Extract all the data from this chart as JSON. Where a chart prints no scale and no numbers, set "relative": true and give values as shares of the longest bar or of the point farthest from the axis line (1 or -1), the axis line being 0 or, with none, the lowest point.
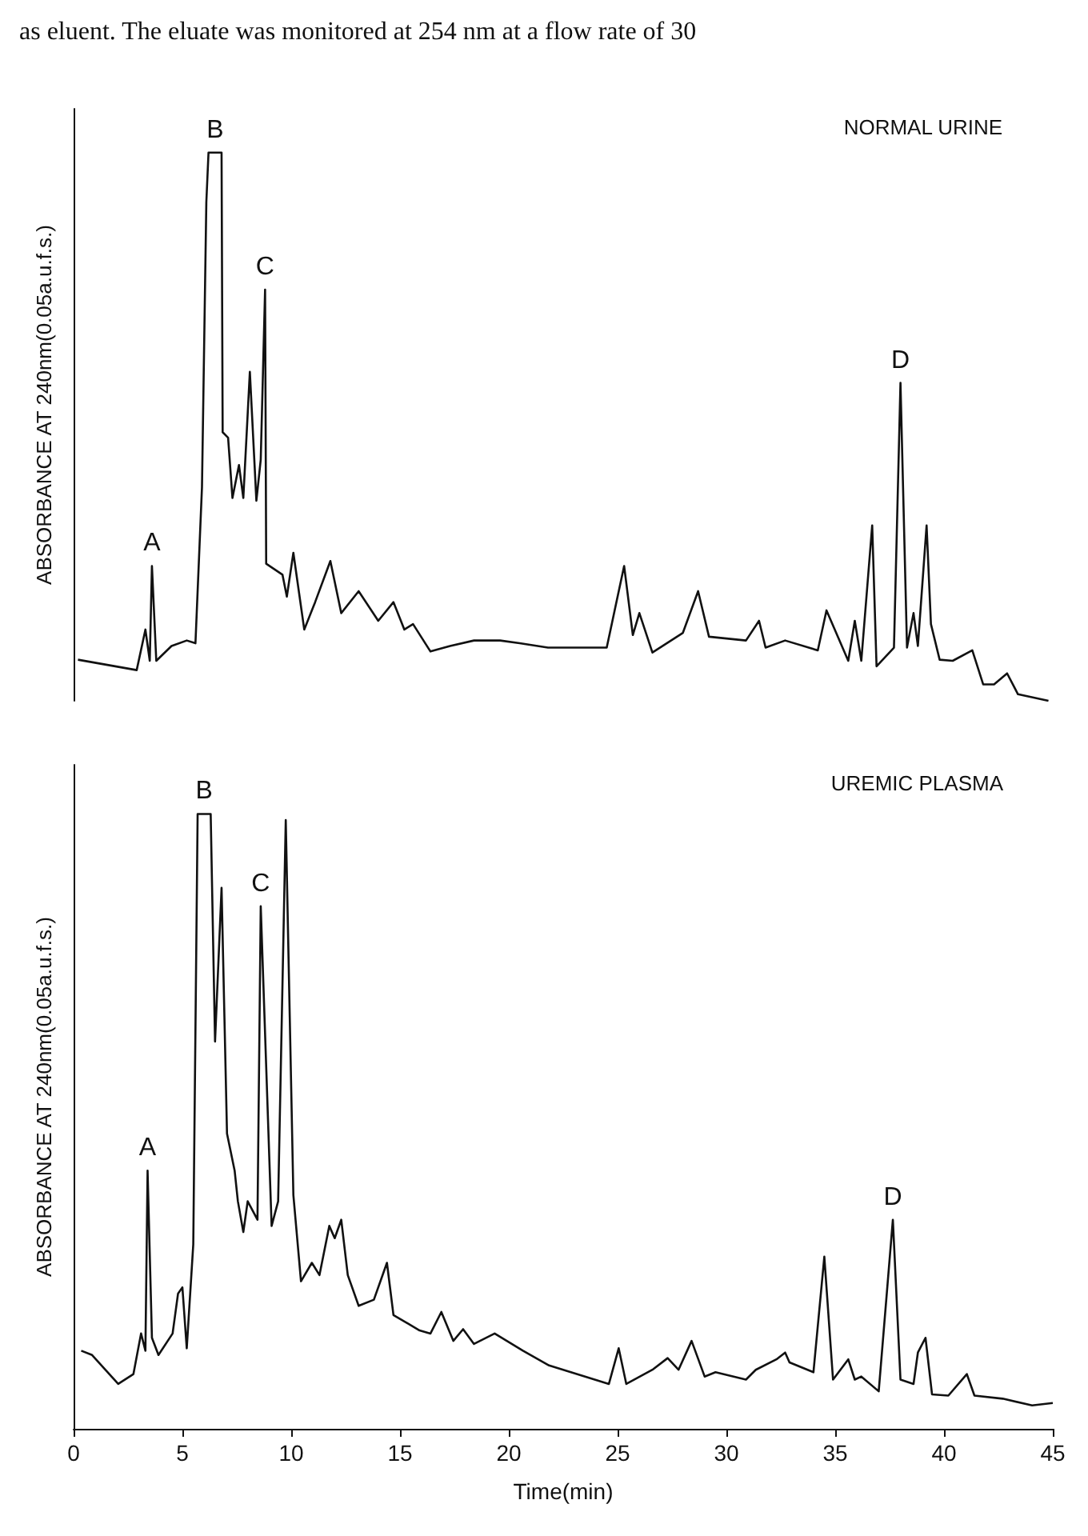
{
  "chart_data": [
    {
      "type": "line",
      "title": "NORMAL URINE",
      "ylabel": "ABSORBANCE AT 240nm(0.05a.u.f.s.)",
      "relative": true,
      "xlim": [
        0,
        45
      ],
      "tick_labels": false,
      "grid": false,
      "marker": "none",
      "annotations": [
        "as eluent. The eluate was monitored at 254 nm at a flow rate of 30",
        {
          "text": "A",
          "x": 3.6,
          "y": 0.246
        },
        {
          "text": "B",
          "x": 6.5,
          "y": 1.0
        },
        {
          "text": "C",
          "x": 8.8,
          "y": 0.75
        },
        {
          "text": "D",
          "x": 38.0,
          "y": 0.58
        }
      ],
      "series": [
        {
          "color": "#111111",
          "x": [
            0.2,
            2.9,
            3.3,
            3.5,
            3.6,
            3.8,
            4.5,
            5.2,
            5.6,
            5.9,
            6.1,
            6.2,
            6.8,
            6.85,
            7.1,
            7.3,
            7.6,
            7.8,
            8.1,
            8.4,
            8.6,
            8.8,
            8.85,
            9.6,
            9.8,
            10.1,
            10.6,
            11.1,
            11.8,
            12.3,
            13.1,
            14.0,
            14.7,
            15.2,
            15.6,
            16.4,
            17.3,
            18.4,
            19.6,
            20.5,
            21.8,
            24.5,
            25.3,
            25.7,
            26.0,
            26.6,
            28.0,
            28.7,
            29.2,
            30.9,
            31.5,
            31.8,
            32.7,
            34.2,
            34.6,
            35.6,
            35.9,
            36.2,
            36.7,
            36.9,
            37.7,
            38.0,
            38.3,
            38.6,
            38.8,
            39.2,
            39.4,
            39.8,
            40.4,
            41.3,
            41.8,
            42.3,
            42.9,
            43.4,
            44.8
          ],
          "values": [
            0.075,
            0.056,
            0.13,
            0.073,
            0.246,
            0.073,
            0.1,
            0.11,
            0.105,
            0.39,
            0.91,
            1.0,
            1.0,
            0.49,
            0.48,
            0.37,
            0.43,
            0.37,
            0.6,
            0.365,
            0.44,
            0.75,
            0.25,
            0.23,
            0.19,
            0.27,
            0.13,
            0.18,
            0.255,
            0.16,
            0.2,
            0.146,
            0.18,
            0.13,
            0.14,
            0.09,
            0.1,
            0.11,
            0.11,
            0.105,
            0.097,
            0.097,
            0.246,
            0.12,
            0.16,
            0.088,
            0.124,
            0.2,
            0.117,
            0.11,
            0.146,
            0.097,
            0.11,
            0.092,
            0.165,
            0.073,
            0.146,
            0.073,
            0.32,
            0.063,
            0.097,
            0.58,
            0.097,
            0.16,
            0.1,
            0.32,
            0.14,
            0.075,
            0.073,
            0.092,
            0.03,
            0.03,
            0.05,
            0.012,
            0.0
          ]
        }
      ]
    },
    {
      "type": "line",
      "title": "UREMIC PLASMA",
      "ylabel": "ABSORBANCE AT 240nm(0.05a.u.f.s.)",
      "xlabel": "Time(min)",
      "relative": true,
      "xlim": [
        0,
        45
      ],
      "xticks": [
        0,
        5,
        10,
        15,
        20,
        25,
        30,
        35,
        40,
        45
      ],
      "tick_labels": "x",
      "grid": false,
      "marker": "none",
      "annotations": [
        {
          "text": "A",
          "x": 3.4,
          "y": 0.42
        },
        {
          "text": "B",
          "x": 6.0,
          "y": 1.0
        },
        {
          "text": "C",
          "x": 8.6,
          "y": 0.85
        },
        {
          "text": "D",
          "x": 37.65,
          "y": 0.34
        }
      ],
      "series": [
        {
          "color": "#111111",
          "x": [
            0.35,
            0.85,
            2.05,
            2.75,
            3.1,
            3.3,
            3.4,
            3.6,
            3.9,
            4.55,
            4.8,
            5.0,
            5.2,
            5.5,
            5.7,
            6.3,
            6.5,
            6.8,
            7.05,
            7.4,
            7.55,
            7.8,
            8.0,
            8.45,
            8.6,
            9.1,
            9.4,
            9.75,
            10.1,
            10.45,
            10.95,
            11.3,
            11.75,
            12.0,
            12.3,
            12.6,
            13.1,
            13.8,
            14.4,
            14.7,
            15.9,
            16.4,
            16.9,
            17.45,
            17.9,
            18.4,
            19.35,
            20.65,
            21.85,
            24.6,
            25.05,
            25.4,
            26.6,
            27.3,
            27.8,
            28.4,
            29.0,
            29.5,
            30.9,
            31.35,
            32.3,
            32.7,
            32.9,
            34.0,
            34.5,
            34.9,
            35.6,
            35.9,
            36.2,
            37.0,
            37.65,
            38.0,
            38.6,
            38.8,
            39.15,
            39.45,
            40.2,
            41.05,
            41.4,
            42.7,
            44.05,
            45.0
          ],
          "values": [
            0.127,
            0.12,
            0.073,
            0.089,
            0.155,
            0.127,
            0.42,
            0.148,
            0.12,
            0.155,
            0.22,
            0.23,
            0.131,
            0.3,
            1.0,
            1.0,
            0.63,
            0.88,
            0.48,
            0.42,
            0.37,
            0.32,
            0.37,
            0.34,
            0.85,
            0.33,
            0.37,
            0.99,
            0.38,
            0.24,
            0.27,
            0.25,
            0.33,
            0.31,
            0.34,
            0.25,
            0.2,
            0.21,
            0.27,
            0.185,
            0.16,
            0.155,
            0.19,
            0.143,
            0.162,
            0.138,
            0.155,
            0.127,
            0.103,
            0.073,
            0.131,
            0.073,
            0.096,
            0.115,
            0.096,
            0.143,
            0.085,
            0.092,
            0.08,
            0.096,
            0.113,
            0.124,
            0.108,
            0.092,
            0.28,
            0.08,
            0.113,
            0.08,
            0.085,
            0.061,
            0.34,
            0.08,
            0.073,
            0.124,
            0.148,
            0.056,
            0.054,
            0.089,
            0.054,
            0.049,
            0.038,
            0.042
          ]
        }
      ]
    }
  ]
}
